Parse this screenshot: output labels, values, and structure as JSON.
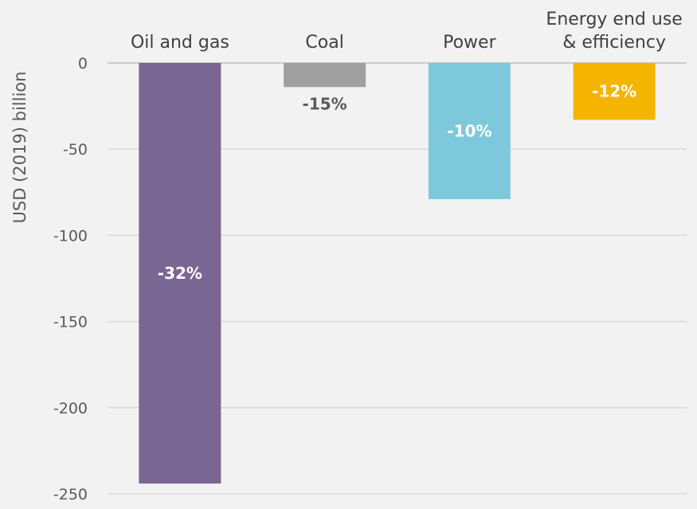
{
  "chart_data": {
    "type": "bar",
    "categories": [
      [
        "Oil and gas"
      ],
      [
        "Coal"
      ],
      [
        "Power"
      ],
      [
        "Energy end use",
        "& efficiency"
      ]
    ],
    "values": [
      -244,
      -14,
      -79,
      -33
    ],
    "data_labels": [
      "-32%",
      "-15%",
      "-10%",
      "-12%"
    ],
    "bar_colors": [
      "#7a6693",
      "#a0a0a0",
      "#7ec8dc",
      "#f5b400"
    ],
    "label_colors": [
      "#ffffff",
      "#595959",
      "#ffffff",
      "#ffffff"
    ],
    "label_positions": [
      "inside",
      "below",
      "inside",
      "inside"
    ],
    "ylabel": "USD (2019) billion",
    "ylim": [
      -250,
      0
    ],
    "yticks": [
      0,
      -50,
      -100,
      -150,
      -200,
      -250
    ],
    "grid": true,
    "legend": "none"
  }
}
